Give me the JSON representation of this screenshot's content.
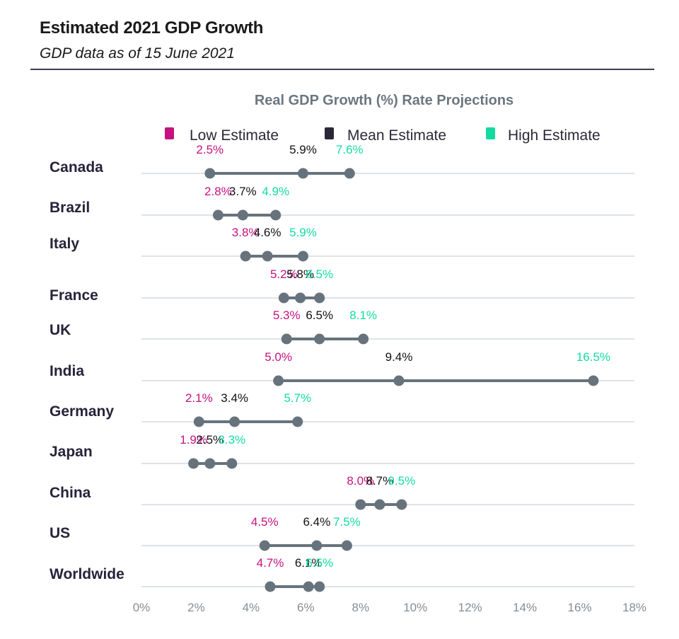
{
  "header": {
    "title": "Estimated 2021 GDP Growth",
    "subtitle": "GDP data as of 15 June 2021"
  },
  "colors": {
    "low": "#c5127f",
    "mean": "#111111",
    "high": "#13dba0",
    "legend_mean_swatch": "#2a2838",
    "dot": "#67737c",
    "grid": "#dfe3e8"
  },
  "chart_data": {
    "type": "dumbbell",
    "title": "Real GDP Growth (%) Rate Projections",
    "xlabel": "",
    "ylabel": "",
    "xlim": [
      0,
      18
    ],
    "xticks": [
      "0%",
      "2%",
      "4%",
      "6%",
      "8%",
      "10%",
      "12%",
      "14%",
      "16%",
      "18%"
    ],
    "grid": "horizontal row lines",
    "legend_position": "top",
    "legend": [
      "Low Estimate",
      "Mean Estimate",
      "High Estimate"
    ],
    "categories": [
      "Canada",
      "Brazil",
      "Italy",
      "France",
      "UK",
      "India",
      "Germany",
      "Japan",
      "China",
      "US",
      "Worldwide"
    ],
    "series": [
      {
        "name": "Low Estimate",
        "values": [
          2.5,
          2.8,
          3.8,
          5.2,
          5.3,
          5.0,
          2.1,
          1.9,
          8.0,
          4.5,
          4.7
        ]
      },
      {
        "name": "Mean Estimate",
        "values": [
          5.9,
          3.7,
          4.6,
          5.8,
          6.5,
          9.4,
          3.4,
          2.5,
          8.7,
          6.4,
          6.1
        ]
      },
      {
        "name": "High Estimate",
        "values": [
          7.6,
          4.9,
          5.9,
          6.5,
          8.1,
          16.5,
          5.7,
          3.3,
          9.5,
          7.5,
          6.5
        ]
      }
    ],
    "labels": {
      "low": [
        "2.5%",
        "2.8%",
        "3.8%",
        "5.2%",
        "5.3%",
        "5.0%",
        "2.1%",
        "1.9%",
        "8.0%",
        "4.5%",
        "4.7%"
      ],
      "mean": [
        "5.9%",
        "3.7%",
        "4.6%",
        "5.8%",
        "6.5%",
        "9.4%",
        "3.4%",
        "2.5%",
        "8.7%",
        "6.4%",
        "6.1%"
      ],
      "high": [
        "7.6%",
        "4.9%",
        "5.9%",
        "6.5%",
        "8.1%",
        "16.5%",
        "5.7%",
        "3.3%",
        "9.5%",
        "7.5%",
        "6.5%"
      ]
    }
  }
}
